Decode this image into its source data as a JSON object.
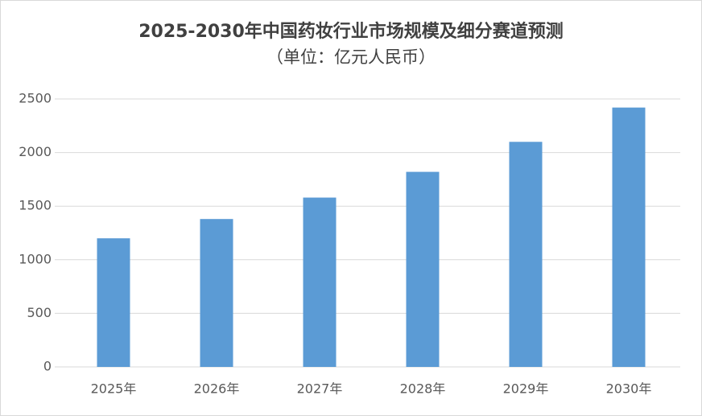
{
  "chart_data": {
    "type": "bar",
    "title": "2025-2030年中国药妆行业市场规模及细分赛道预测",
    "subtitle": "（单位：亿元人民币）",
    "categories": [
      "2025年",
      "2026年",
      "2027年",
      "2028年",
      "2029年",
      "2030年"
    ],
    "values": [
      1200,
      1380,
      1580,
      1820,
      2100,
      2420
    ],
    "color": "#5b9bd5",
    "ylim": [
      0,
      2500
    ],
    "yticks": [
      0,
      500,
      1000,
      1500,
      2000,
      2500
    ],
    "grid": true
  }
}
